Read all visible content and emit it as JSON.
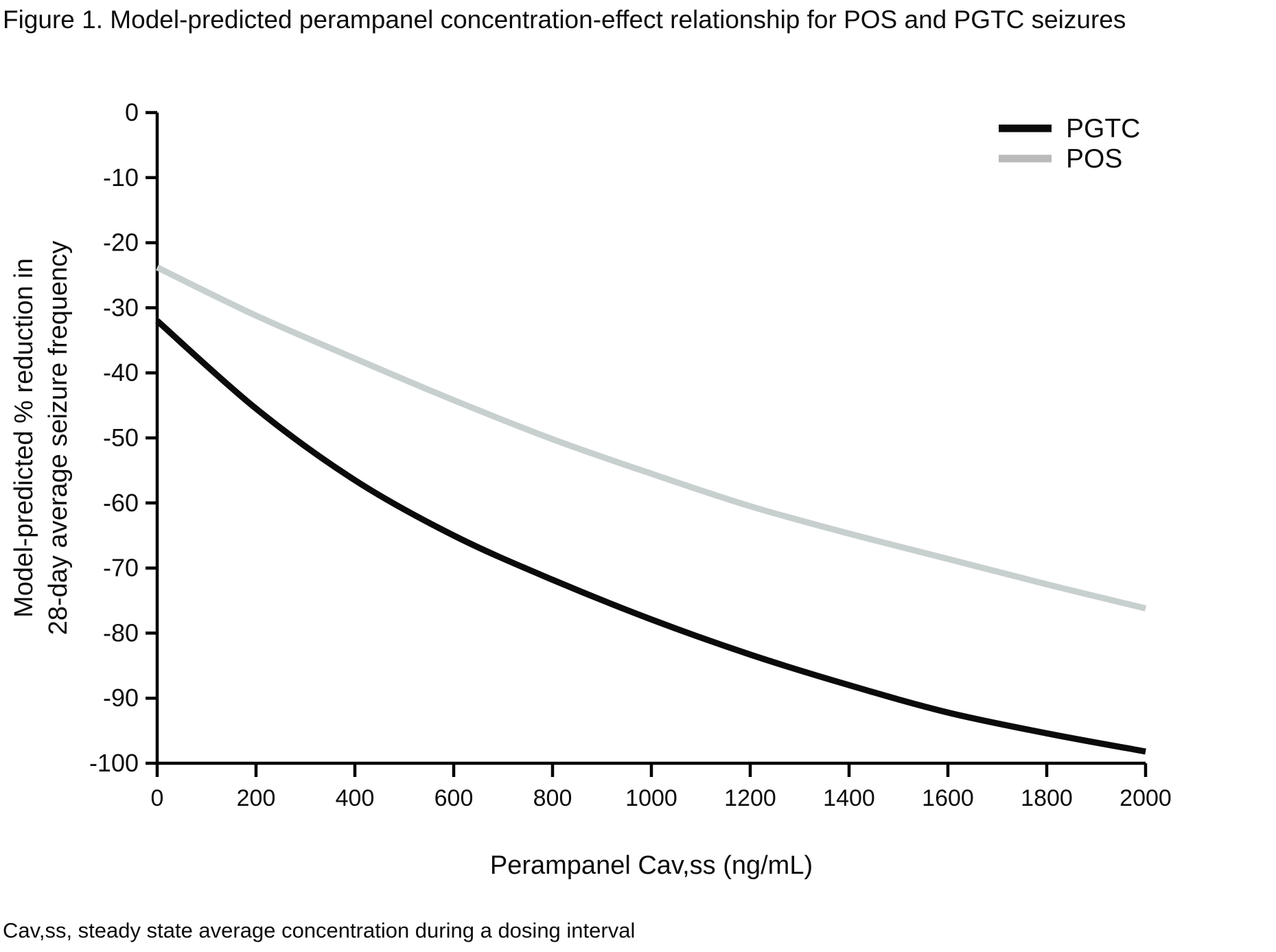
{
  "figure": {
    "title": "Figure 1. Model-predicted perampanel concentration-effect relationship for POS and PGTC seizures",
    "footnote": "Cav,ss, steady state average concentration during a dosing interval"
  },
  "chart_data": {
    "type": "line",
    "xlabel": "Perampanel Cav,ss (ng/mL)",
    "ylabel_line1": "Model-predicted % reduction in",
    "ylabel_line2": "28-day average seizure frequency",
    "xlim": [
      0,
      2000
    ],
    "ylim": [
      -100,
      0
    ],
    "x_ticks": [
      0,
      200,
      400,
      600,
      800,
      1000,
      1200,
      1400,
      1600,
      1800,
      2000
    ],
    "y_ticks": [
      0,
      -10,
      -20,
      -30,
      -40,
      -50,
      -60,
      -70,
      -80,
      -90,
      -100
    ],
    "grid": false,
    "legend_position": "top-right",
    "x": [
      0,
      200,
      400,
      600,
      800,
      1000,
      1200,
      1400,
      1600,
      1800,
      2000
    ],
    "series": [
      {
        "name": "PGTC",
        "color": "#0b0b0b",
        "legend_color": "#0b0b0b",
        "values": [
          -32,
          -45.5,
          -56.5,
          -65,
          -71.8,
          -77.9,
          -83.3,
          -88,
          -92.2,
          -95.4,
          -98.2
        ]
      },
      {
        "name": "POS",
        "color": "#c7d0cf",
        "legend_color": "#b9bab9",
        "values": [
          -23.8,
          -31.2,
          -37.8,
          -44.2,
          -50.2,
          -55.5,
          -60.5,
          -64.7,
          -68.6,
          -72.5,
          -76.2
        ]
      }
    ]
  },
  "colors": {
    "background": "#ffffff",
    "axis": "#000000",
    "text": "#0b0b0b"
  }
}
